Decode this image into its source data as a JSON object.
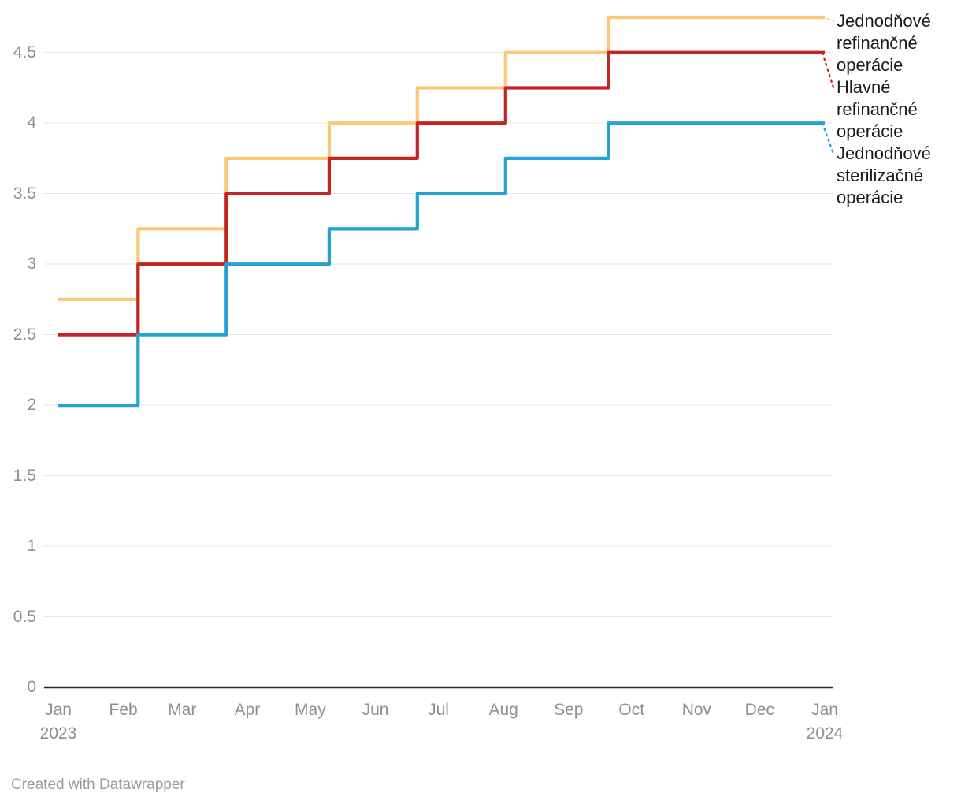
{
  "footer": "Created with Datawrapper",
  "colors": {
    "grid": "#e7e7e7",
    "baseline": "#262626",
    "tick_text": "#8f8f8f",
    "label_text": "#1a1a1a",
    "credit_text": "#9b9b9b",
    "series_yellow": "#FBC878",
    "series_red": "#C42522",
    "series_blue": "#23A2D4"
  },
  "chart_data": {
    "type": "line",
    "step": "after",
    "title": "",
    "xlabel": "",
    "ylabel": "",
    "grid": true,
    "legend_position": "right-direct-labels",
    "x_range": [
      "2023-01-01",
      "2024-01-01"
    ],
    "ylim": [
      0,
      4.75
    ],
    "y_ticks": [
      0,
      0.5,
      1,
      1.5,
      2,
      2.5,
      3,
      3.5,
      4,
      4.5
    ],
    "x_ticks": [
      {
        "label": "Jan",
        "sub": "2023",
        "date": "2023-01-01"
      },
      {
        "label": "Feb",
        "date": "2023-02-01"
      },
      {
        "label": "Mar",
        "date": "2023-03-01"
      },
      {
        "label": "Apr",
        "date": "2023-04-01"
      },
      {
        "label": "May",
        "date": "2023-05-01"
      },
      {
        "label": "Jun",
        "date": "2023-06-01"
      },
      {
        "label": "Jul",
        "date": "2023-07-01"
      },
      {
        "label": "Aug",
        "date": "2023-08-01"
      },
      {
        "label": "Sep",
        "date": "2023-09-01"
      },
      {
        "label": "Oct",
        "date": "2023-10-01"
      },
      {
        "label": "Nov",
        "date": "2023-11-01"
      },
      {
        "label": "Dec",
        "date": "2023-12-01"
      },
      {
        "label": "Jan",
        "sub": "2024",
        "date": "2024-01-01"
      }
    ],
    "series": [
      {
        "name": "Jednodňové refinančné operácie",
        "color": "#FBC878",
        "points": [
          [
            "2023-01-01",
            2.75
          ],
          [
            "2023-02-08",
            3.25
          ],
          [
            "2023-03-22",
            3.75
          ],
          [
            "2023-05-10",
            4.0
          ],
          [
            "2023-06-21",
            4.25
          ],
          [
            "2023-08-02",
            4.5
          ],
          [
            "2023-09-20",
            4.75
          ],
          [
            "2024-01-01",
            4.75
          ]
        ]
      },
      {
        "name": "Hlavné refinančné operácie",
        "color": "#C42522",
        "points": [
          [
            "2023-01-01",
            2.5
          ],
          [
            "2023-02-08",
            3.0
          ],
          [
            "2023-03-22",
            3.5
          ],
          [
            "2023-05-10",
            3.75
          ],
          [
            "2023-06-21",
            4.0
          ],
          [
            "2023-08-02",
            4.25
          ],
          [
            "2023-09-20",
            4.5
          ],
          [
            "2024-01-01",
            4.5
          ]
        ]
      },
      {
        "name": "Jednodňové sterilizačné operácie",
        "color": "#23A2D4",
        "points": [
          [
            "2023-01-01",
            2.0
          ],
          [
            "2023-02-08",
            2.5
          ],
          [
            "2023-03-22",
            3.0
          ],
          [
            "2023-05-10",
            3.25
          ],
          [
            "2023-06-21",
            3.5
          ],
          [
            "2023-08-02",
            3.75
          ],
          [
            "2023-09-20",
            4.0
          ],
          [
            "2024-01-01",
            4.0
          ]
        ]
      }
    ]
  }
}
